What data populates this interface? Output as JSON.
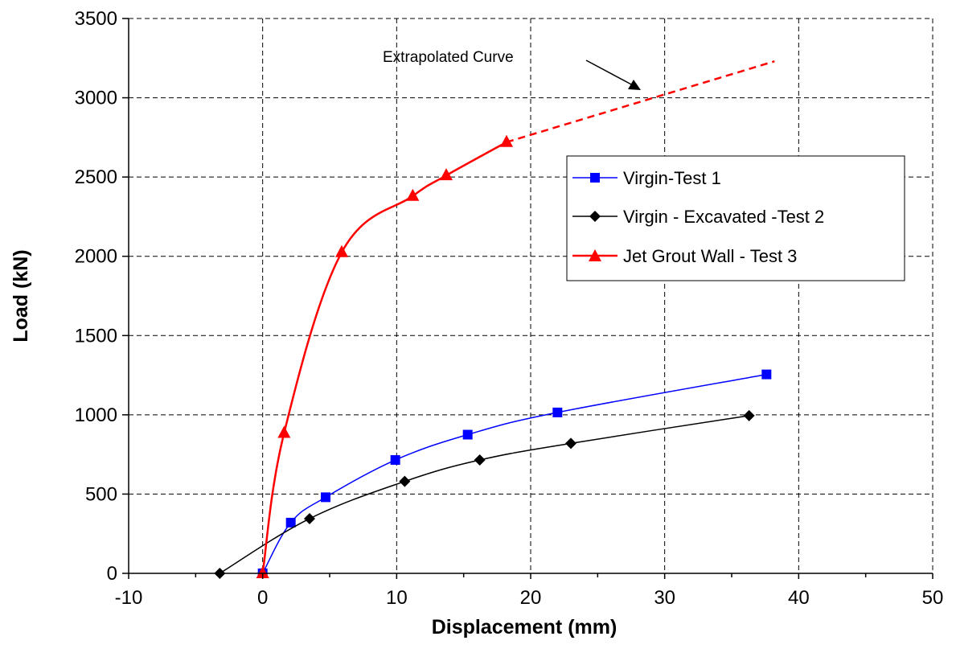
{
  "chart_data": {
    "type": "line",
    "title": "",
    "xlabel": "Displacement (mm)",
    "ylabel": "Load (kN)",
    "xlim": [
      -10,
      50
    ],
    "ylim": [
      0,
      3500
    ],
    "x_ticks": [
      -10,
      0,
      10,
      20,
      30,
      40,
      50
    ],
    "y_ticks": [
      0,
      500,
      1000,
      1500,
      2000,
      2500,
      3000,
      3500
    ],
    "grid": true,
    "legend_position": "right",
    "series": [
      {
        "name": "Virgin-Test 1",
        "color": "#0000ff",
        "marker": "square",
        "x": [
          0,
          2.1,
          4.7,
          9.9,
          15.3,
          22,
          37.6
        ],
        "y": [
          0,
          320,
          480,
          715,
          875,
          1015,
          1255
        ]
      },
      {
        "name": "Virgin - Excavated -Test 2",
        "color": "#000000",
        "marker": "diamond",
        "x": [
          -3.2,
          3.5,
          10.6,
          16.2,
          23,
          36.3
        ],
        "y": [
          0,
          345,
          580,
          715,
          820,
          995
        ]
      },
      {
        "name": "Jet Grout Wall - Test 3",
        "color": "#ff0000",
        "marker": "triangle",
        "x": [
          0,
          1.6,
          5.9,
          11.2,
          13.7,
          18.2
        ],
        "y": [
          0,
          885,
          2025,
          2380,
          2510,
          2720
        ]
      }
    ],
    "extrapolation": {
      "series": "Jet Grout Wall - Test 3",
      "color": "#ff0000",
      "x": [
        18.2,
        38.2
      ],
      "y": [
        2720,
        3230
      ]
    },
    "annotation": {
      "text": "Extrapolated Curve"
    }
  }
}
